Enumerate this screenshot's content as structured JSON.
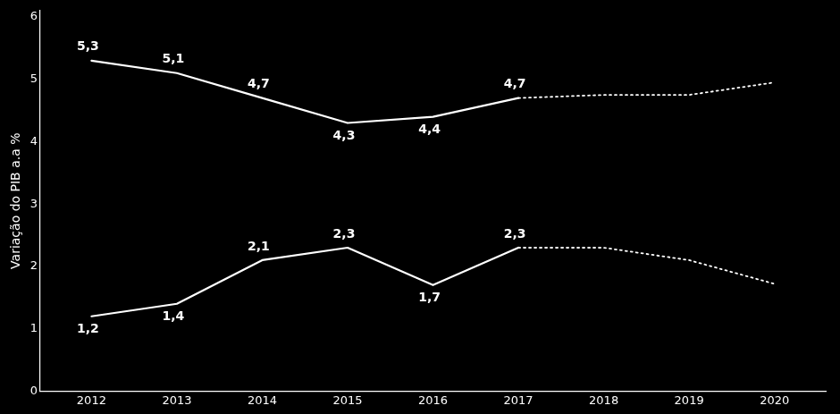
{
  "chart_data": {
    "type": "line",
    "y_label": "Variação do PIB a.a %",
    "xlim": [
      2011.4,
      2020.6
    ],
    "xticks": [
      2012,
      2013,
      2014,
      2015,
      2016,
      2017,
      2018,
      2019,
      2020
    ],
    "ylim": [
      0,
      6.1
    ],
    "yticks": [
      0,
      1,
      2,
      3,
      4,
      5,
      6
    ],
    "grid": false,
    "data_labels": true,
    "series": [
      {
        "x": [
          2012,
          2013,
          2014,
          2015,
          2016,
          2017
        ],
        "values": [
          5.3,
          5.1,
          4.7,
          4.3,
          4.4,
          4.7
        ],
        "value_labels": [
          "5,3",
          "5,1",
          "4,7",
          "4,3",
          "4,4",
          "4,7"
        ],
        "color": "#ffffff",
        "line_style": "solid"
      },
      {
        "x": [
          2012,
          2013,
          2014,
          2015,
          2016,
          2017
        ],
        "values": [
          1.2,
          1.4,
          2.1,
          2.3,
          1.7,
          2.3
        ],
        "value_labels": [
          "1,2",
          "1,4",
          "2,1",
          "2,3",
          "1,7",
          "2,3"
        ],
        "color": "#ffffff",
        "line_style": "solid"
      },
      {
        "x": [
          2017,
          2018,
          2019,
          2020
        ],
        "values": [
          4.7,
          4.75,
          4.75,
          4.95
        ],
        "color": "#ffffff",
        "line_style": "dotted"
      },
      {
        "x": [
          2017,
          2018,
          2019,
          2020
        ],
        "values": [
          2.3,
          2.3,
          2.1,
          1.72
        ],
        "color": "#ffffff",
        "line_style": "dotted"
      }
    ]
  }
}
